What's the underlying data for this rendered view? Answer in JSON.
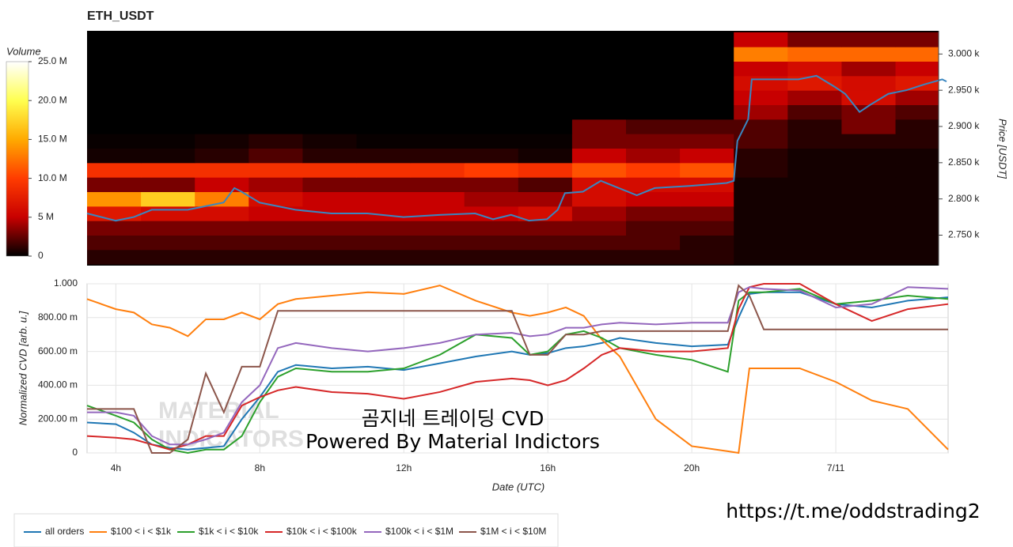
{
  "chart_data": [
    {
      "type": "heatmap",
      "title": "ETH_USDT",
      "ylabel": "Price [USDT]",
      "xlim": [
        3.2,
        26.9
      ],
      "ylim": [
        2708,
        3032
      ],
      "yticks": [
        {
          "value": 2750,
          "label": "2.750 k"
        },
        {
          "value": 2800,
          "label": "2.800 k"
        },
        {
          "value": 2850,
          "label": "2.850 k"
        },
        {
          "value": 2900,
          "label": "2.900 k"
        },
        {
          "value": 2950,
          "label": "2.950 k"
        },
        {
          "value": 3000,
          "label": "3.000 k"
        }
      ],
      "x_bins": [
        3.2,
        4.7,
        6.2,
        7.7,
        9.2,
        10.7,
        12.2,
        13.7,
        15.2,
        16.7,
        18.2,
        19.7,
        21.2,
        22.7,
        24.2,
        25.7,
        26.9
      ],
      "y_bins": [
        2710,
        2730,
        2750,
        2770,
        2790,
        2810,
        2830,
        2850,
        2870,
        2890,
        2910,
        2930,
        2950,
        2970,
        2990,
        3010,
        3030
      ],
      "z": [
        [
          1,
          1,
          1,
          1,
          1,
          1,
          1,
          1,
          1,
          1,
          1,
          1,
          0.5,
          0.5,
          0.5,
          0.5
        ],
        [
          2,
          2,
          2,
          2,
          2,
          2,
          2,
          2,
          2,
          2,
          2,
          1,
          0.5,
          0.5,
          0.5,
          0.5
        ],
        [
          3,
          3,
          3,
          3,
          3,
          3,
          3,
          3,
          3,
          3,
          2,
          2,
          0.5,
          0.5,
          0.5,
          0.5
        ],
        [
          7,
          6,
          6,
          5,
          5,
          5,
          5,
          5,
          6,
          4,
          3,
          3,
          0.5,
          0.5,
          0.5,
          0.5
        ],
        [
          14,
          17,
          13,
          6,
          5,
          5,
          5,
          4,
          4,
          6,
          5,
          5,
          0.5,
          0.5,
          0.5,
          0.5
        ],
        [
          3,
          3,
          5,
          4,
          3,
          3,
          3,
          3,
          2,
          6,
          6,
          6,
          0.5,
          0.5,
          0.5,
          0.5
        ],
        [
          9,
          9,
          9,
          9,
          9,
          9,
          9,
          10,
          9,
          11,
          10,
          11,
          1,
          0.5,
          0.5,
          0.5
        ],
        [
          0.5,
          0.5,
          1,
          2,
          1,
          1,
          1,
          1,
          0.5,
          5,
          4,
          5,
          1,
          0.5,
          0.5,
          0.5
        ],
        [
          0.2,
          0.2,
          0.5,
          1,
          0.5,
          0.2,
          0.2,
          0.2,
          0.2,
          3,
          3,
          3,
          2,
          1,
          1,
          1
        ],
        [
          0,
          0,
          0,
          0,
          0,
          0,
          0,
          0,
          0,
          3,
          2,
          2,
          2,
          1,
          3,
          1
        ],
        [
          0,
          0,
          0,
          0,
          0,
          0,
          0,
          0,
          0,
          0,
          0,
          0,
          4,
          2,
          3,
          2
        ],
        [
          0,
          0,
          0,
          0,
          0,
          0,
          0,
          0,
          0,
          0,
          0,
          0,
          5,
          4,
          6,
          4
        ],
        [
          0,
          0,
          0,
          0,
          0,
          0,
          0,
          0,
          0,
          0,
          0,
          0,
          6,
          7,
          6,
          7
        ],
        [
          0,
          0,
          0,
          0,
          0,
          0,
          0,
          0,
          0,
          0,
          0,
          0,
          5,
          6,
          4,
          5
        ],
        [
          0,
          0,
          0,
          0,
          0,
          0,
          0,
          0,
          0,
          0,
          0,
          0,
          13,
          12,
          12,
          12
        ],
        [
          0,
          0,
          0,
          0,
          0,
          0,
          0,
          0,
          0,
          0,
          0,
          0,
          5,
          3,
          3,
          3
        ]
      ],
      "colormap": [
        "#000000",
        "#c80000",
        "#ff3c00",
        "#ffaa00",
        "#ffff50",
        "#ffffff"
      ],
      "colorbar": {
        "title": "Volume",
        "lim": [
          0,
          25
        ],
        "ticks": [
          0,
          {
            "value": 5,
            "label": "5 M"
          },
          {
            "value": 10,
            "label": "10.0 M"
          },
          {
            "value": 15,
            "label": "15.0 M"
          },
          {
            "value": 20,
            "label": "20.0 M"
          },
          {
            "value": 25,
            "label": "25.0 M"
          }
        ]
      },
      "price_line": {
        "color": "#3a86c0",
        "x": [
          3.2,
          4,
          4.5,
          5,
          6,
          7,
          7.3,
          7.5,
          8,
          9,
          10,
          11,
          12,
          13,
          14,
          14.5,
          15,
          15.5,
          16,
          16.3,
          16.5,
          17,
          17.5,
          18,
          18.5,
          19,
          20,
          21,
          21.2,
          21.3,
          21.6,
          21.7,
          22,
          23,
          23.5,
          24,
          24.3,
          24.7,
          25,
          25.5,
          26,
          26.5,
          27,
          27.12
        ],
        "values": [
          2780,
          2770,
          2775,
          2785,
          2785,
          2795,
          2815,
          2810,
          2795,
          2785,
          2780,
          2780,
          2775,
          2778,
          2780,
          2772,
          2778,
          2770,
          2772,
          2785,
          2808,
          2810,
          2825,
          2815,
          2805,
          2815,
          2818,
          2822,
          2825,
          2880,
          2910,
          2965,
          2965,
          2965,
          2970,
          2955,
          2945,
          2920,
          2930,
          2945,
          2950,
          2958,
          2965,
          2962
        ]
      }
    },
    {
      "type": "line",
      "xlabel": "Date (UTC)",
      "ylabel": "Normalized CVD [arb. u.]",
      "grid": true,
      "xlim": [
        3.2,
        27.12
      ],
      "ylim": [
        0,
        1
      ],
      "xticks": [
        {
          "value": 4,
          "label": "4h"
        },
        {
          "value": 8,
          "label": "8h"
        },
        {
          "value": 12,
          "label": "12h"
        },
        {
          "value": 16,
          "label": "16h"
        },
        {
          "value": 20,
          "label": "20h"
        },
        {
          "value": 24,
          "label": "7/11"
        }
      ],
      "yticks": [
        0,
        {
          "value": 0.2,
          "label": "200.00 m"
        },
        {
          "value": 0.4,
          "label": "400.00 m"
        },
        {
          "value": 0.6,
          "label": "600.00 m"
        },
        {
          "value": 0.8,
          "label": "800.00 m"
        },
        {
          "value": 1,
          "label": "1.000"
        }
      ],
      "x": [
        3.2,
        4,
        4.5,
        5,
        5.5,
        6,
        6.5,
        7,
        7.5,
        8,
        8.5,
        9,
        10,
        11,
        12,
        13,
        14,
        15,
        15.5,
        16,
        16.5,
        17,
        17.5,
        18,
        19,
        20,
        21,
        21.3,
        21.6,
        22,
        23,
        24,
        25,
        26,
        27.12
      ],
      "series": [
        {
          "name": "all orders",
          "color": "#1f77b4",
          "values": [
            0.18,
            0.17,
            0.12,
            0.05,
            0.03,
            0.02,
            0.03,
            0.04,
            0.2,
            0.33,
            0.48,
            0.52,
            0.5,
            0.51,
            0.49,
            0.53,
            0.57,
            0.6,
            0.58,
            0.59,
            0.62,
            0.63,
            0.65,
            0.68,
            0.65,
            0.63,
            0.64,
            0.8,
            0.94,
            0.95,
            0.95,
            0.88,
            0.86,
            0.9,
            0.92
          ]
        },
        {
          "name": "$100 < i < $1k",
          "color": "#ff7f0e",
          "values": [
            0.91,
            0.85,
            0.83,
            0.76,
            0.74,
            0.69,
            0.79,
            0.79,
            0.83,
            0.79,
            0.88,
            0.91,
            0.93,
            0.95,
            0.94,
            0.99,
            0.9,
            0.83,
            0.81,
            0.83,
            0.86,
            0.81,
            0.67,
            0.57,
            0.2,
            0.04,
            0.01,
            0,
            0.5,
            0.5,
            0.5,
            0.42,
            0.31,
            0.26,
            0.02
          ]
        },
        {
          "name": "$1k < i < $10k",
          "color": "#2ca02c",
          "values": [
            0.28,
            0.22,
            0.18,
            0.08,
            0.02,
            0,
            0.02,
            0.02,
            0.1,
            0.3,
            0.45,
            0.5,
            0.48,
            0.48,
            0.5,
            0.58,
            0.7,
            0.68,
            0.58,
            0.6,
            0.7,
            0.72,
            0.68,
            0.62,
            0.58,
            0.55,
            0.48,
            0.9,
            0.95,
            0.95,
            0.97,
            0.88,
            0.9,
            0.93,
            0.91
          ]
        },
        {
          "name": "$10k < i < $100k",
          "color": "#d62728",
          "values": [
            0.1,
            0.09,
            0.08,
            0.05,
            0.02,
            0.05,
            0.1,
            0.1,
            0.28,
            0.33,
            0.37,
            0.39,
            0.36,
            0.35,
            0.32,
            0.36,
            0.42,
            0.44,
            0.43,
            0.4,
            0.43,
            0.5,
            0.58,
            0.62,
            0.6,
            0.6,
            0.62,
            0.85,
            0.98,
            1,
            1,
            0.88,
            0.78,
            0.85,
            0.88
          ]
        },
        {
          "name": "$100k < i < $1M",
          "color": "#9467bd",
          "values": [
            0.24,
            0.24,
            0.22,
            0.1,
            0.05,
            0.05,
            0.08,
            0.12,
            0.3,
            0.4,
            0.62,
            0.65,
            0.62,
            0.6,
            0.62,
            0.65,
            0.7,
            0.71,
            0.69,
            0.7,
            0.74,
            0.74,
            0.76,
            0.77,
            0.76,
            0.77,
            0.77,
            0.95,
            0.98,
            0.97,
            0.96,
            0.86,
            0.88,
            0.98,
            0.97
          ]
        },
        {
          "name": "$1M < i < $10M",
          "color": "#8c564b",
          "values": [
            0.26,
            0.26,
            0.26,
            0,
            0,
            0.08,
            0.47,
            0.24,
            0.51,
            0.51,
            0.84,
            0.84,
            0.84,
            0.84,
            0.84,
            0.84,
            0.84,
            0.84,
            0.58,
            0.58,
            0.7,
            0.7,
            0.72,
            0.72,
            0.72,
            0.72,
            0.72,
            0.99,
            0.93,
            0.73,
            0.73,
            0.73,
            0.73,
            0.73,
            0.73
          ]
        }
      ],
      "watermark": [
        "MATERIAL",
        "INDICATORS"
      ],
      "annotations": [
        "곰지네 트레이딩 CVD",
        "Powered By Material Indictors"
      ]
    }
  ],
  "footer": {
    "url": "https://t.me/oddstrading2"
  }
}
